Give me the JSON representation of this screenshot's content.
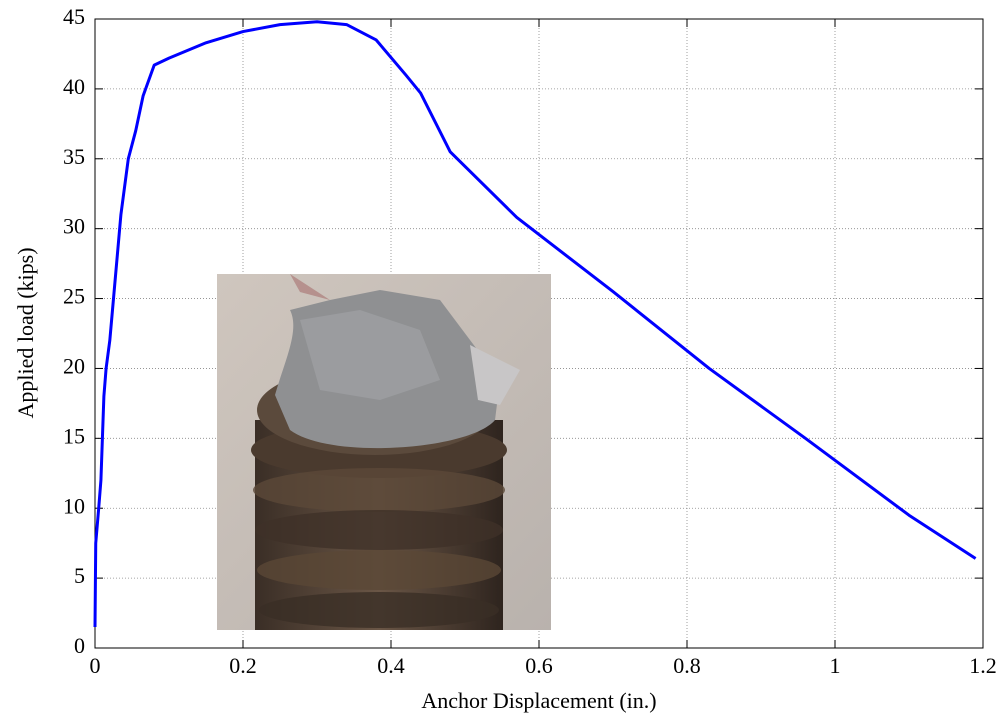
{
  "chart_data": {
    "type": "line",
    "xlabel": "Anchor Displacement (in.)",
    "ylabel": "Applied load (kips)",
    "x": [
      0,
      0.001,
      0.005,
      0.008,
      0.01,
      0.012,
      0.015,
      0.02,
      0.025,
      0.03,
      0.035,
      0.04,
      0.045,
      0.055,
      0.065,
      0.08,
      0.1,
      0.15,
      0.2,
      0.25,
      0.3,
      0.34,
      0.38,
      0.42,
      0.44,
      0.48,
      0.57,
      0.7,
      0.83,
      0.96,
      1.1,
      1.19
    ],
    "values": [
      1.5,
      7.5,
      10,
      12,
      15,
      18,
      20,
      22,
      25,
      28,
      31,
      33,
      35,
      37,
      39.5,
      41.7,
      42.2,
      43.3,
      44.1,
      44.6,
      44.8,
      44.6,
      43.5,
      41,
      39.7,
      35.5,
      30.8,
      25.5,
      20,
      15,
      9.5,
      6.4
    ],
    "color": "#0000ff",
    "xlim": [
      0,
      1.2
    ],
    "xticks": [
      0,
      0.2,
      0.4,
      0.6,
      0.8,
      1,
      1.2
    ],
    "ylim": [
      0,
      45
    ],
    "yticks": [
      0,
      5,
      10,
      15,
      20,
      25,
      30,
      35,
      40,
      45
    ],
    "grid": true
  }
}
